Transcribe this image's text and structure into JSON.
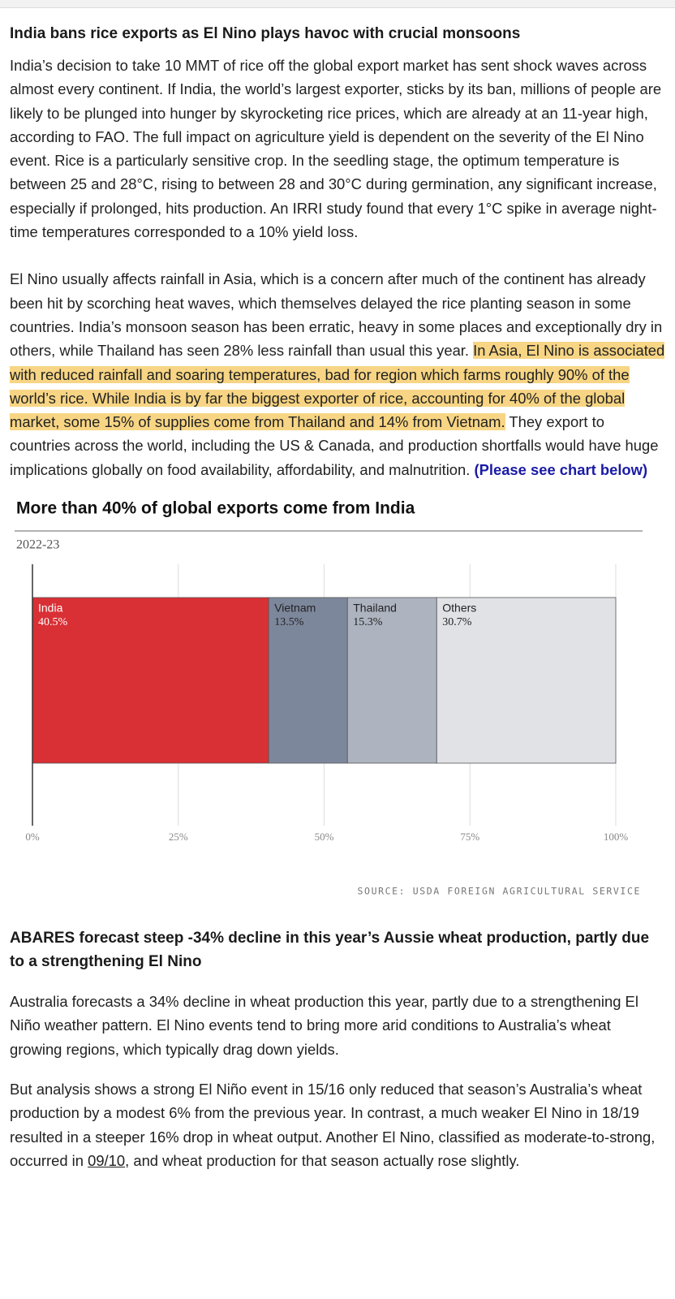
{
  "section1": {
    "heading": "India bans rice exports as El Nino plays havoc with crucial monsoons",
    "paragraph1": "India’s decision to take 10 MMT of rice off the global export market has sent shock waves across almost every continent. If India, the world’s largest exporter, sticks by its ban, millions of people are likely to be plunged into hunger by skyrocketing rice prices, which are already at an 11-year high, according to FAO. The full impact on agriculture yield is dependent on the severity of the El Nino event. Rice is a particularly sensitive crop. In the seedling stage, the optimum temperature is between 25 and 28°C, rising to between 28 and 30°C during germination, any significant increase, especially if prolonged, hits production. An IRRI study found that every 1°C spike in average night-time temperatures corresponded to a 10% yield loss.",
    "paragraph2": {
      "before": "El Nino usually affects rainfall in Asia, which is a concern after much of the continent has already been hit by scorching heat waves, which themselves delayed the rice planting season in some countries. India’s monsoon season has been erratic, heavy in some places and exceptionally dry in others, while Thailand has seen 28% less rainfall than usual this year. ",
      "highlight": "In Asia, El Nino is associated with reduced rainfall and soaring temperatures, bad for region which farms roughly 90% of the world’s rice. While India is by far the biggest exporter of rice, accounting for 40% of the global market, some 15% of supplies come from Thailand and 14% from Vietnam.",
      "after": " They export to countries across the world, including the US & Canada, and production shortfalls would have huge implications globally on food availability, affordability, and malnutrition. ",
      "link": "(Please see chart below)"
    }
  },
  "chart_data": {
    "type": "bar",
    "orientation": "horizontal",
    "stacked": true,
    "title": "More than 40% of global exports come from India",
    "subtitle": "2022-23",
    "source": "SOURCE: USDA FOREIGN AGRICULTURAL SERVICE",
    "categories": [
      "India",
      "Vietnam",
      "Thailand",
      "Others"
    ],
    "values": [
      40.5,
      13.5,
      15.3,
      30.7
    ],
    "value_labels": [
      "40.5%",
      "13.5%",
      "15.3%",
      "30.7%"
    ],
    "colors": [
      "#d93035",
      "#7d879c",
      "#adb3bf",
      "#e0e2e6"
    ],
    "xlim": [
      0,
      100
    ],
    "xticks": [
      {
        "value": 0,
        "label": "0%"
      },
      {
        "value": 25,
        "label": "25%"
      },
      {
        "value": 50,
        "label": "50%"
      },
      {
        "value": 75,
        "label": "75%"
      },
      {
        "value": 100,
        "label": "100%"
      }
    ],
    "grid": true
  },
  "section2": {
    "heading": "ABARES forecast steep -34% decline in this year’s Aussie wheat production, partly due to a strengthening El Nino",
    "paragraph1": "Australia forecasts a 34% decline in wheat production this year, partly due to a strengthening El Niño weather pattern. El Nino events tend to bring more arid conditions to Australia’s wheat growing regions, which typically drag down yields.",
    "paragraph2": {
      "before": "But analysis shows a strong El Niño event in 15/16 only reduced that season’s Australia’s wheat production by a modest 6% from the previous year. In contrast, a much weaker El Nino in 18/19 resulted in a steeper 16% drop in wheat output. Another El Nino, classified as moderate-to-strong, occurred in ",
      "underlined": "09/10",
      "after": ", and wheat production for that season actually rose slightly."
    }
  }
}
